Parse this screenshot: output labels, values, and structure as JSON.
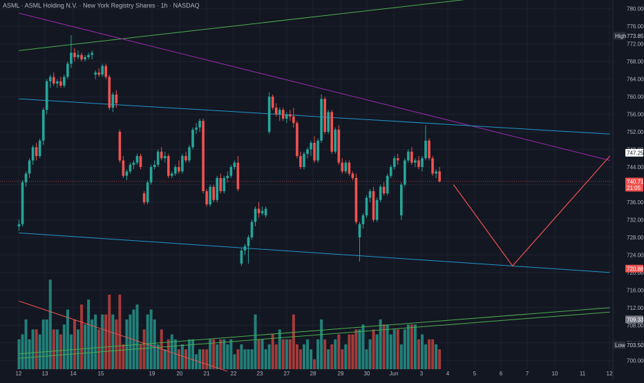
{
  "header": {
    "title": "ASML · ASML Holding N.V. · New York Registry Shares · 1h · NASDAQ"
  },
  "colors": {
    "background": "#131722",
    "up": "#26a69a",
    "down": "#ef5350",
    "volume_up": "#22807a",
    "volume_down": "#a33b3a",
    "trend_purple": "#9c27b0",
    "channel_cyan": "#2196c9",
    "green_line": "#4caf50",
    "projection_red": "#ef5350",
    "grid": "#1e2230",
    "text": "#b2b5be"
  },
  "chart_data": {
    "type": "candlestick",
    "y_axis_side": "right",
    "ylim": [
      698,
      782
    ],
    "y_ticks": [
      700,
      704,
      708,
      712,
      716,
      720,
      724,
      728,
      732,
      736,
      740,
      744,
      748,
      752,
      756,
      760,
      764,
      768,
      772,
      776,
      780
    ],
    "x_ticks": [
      "12",
      "13",
      "14",
      "15",
      "19",
      "20",
      "21",
      "22",
      "23",
      "27",
      "28",
      "29",
      "30",
      "Jun",
      "3",
      "4",
      "5",
      "6",
      "7",
      "10",
      "11",
      "12"
    ],
    "grid": true,
    "price_tags": [
      {
        "label": "High",
        "value": 773.85,
        "kind": "high"
      },
      {
        "label": "",
        "value": 747.25,
        "kind": "resistance"
      },
      {
        "label": "",
        "value": 740.71,
        "sub": "21:05",
        "kind": "last"
      },
      {
        "label": "",
        "value": 720.88,
        "kind": "support"
      },
      {
        "label": "",
        "value": 709.33,
        "kind": "green"
      },
      {
        "label": "Low",
        "value": 703.5,
        "kind": "low"
      }
    ],
    "candles": [
      [
        730.5,
        732.0,
        729.5,
        731.0
      ],
      [
        731.0,
        741.0,
        730.5,
        740.5
      ],
      [
        740.5,
        743.0,
        739.5,
        742.5
      ],
      [
        742.5,
        746.0,
        741.5,
        745.5
      ],
      [
        745.5,
        749.0,
        744.5,
        748.5
      ],
      [
        748.5,
        749.5,
        745.5,
        746.5
      ],
      [
        746.5,
        750.5,
        746.0,
        750.0
      ],
      [
        750.0,
        757.5,
        749.0,
        757.0
      ],
      [
        757.0,
        764.0,
        756.0,
        763.5
      ],
      [
        763.5,
        765.0,
        762.0,
        764.5
      ],
      [
        764.5,
        765.5,
        762.5,
        763.0
      ],
      [
        763.0,
        764.0,
        762.0,
        763.5
      ],
      [
        763.5,
        764.5,
        762.0,
        762.5
      ],
      [
        762.5,
        765.0,
        762.0,
        764.5
      ],
      [
        764.5,
        768.0,
        764.0,
        767.5
      ],
      [
        767.5,
        774.0,
        766.5,
        770.0
      ],
      [
        770.0,
        771.0,
        768.0,
        769.0
      ],
      [
        769.0,
        770.5,
        768.5,
        769.5
      ],
      [
        769.5,
        770.0,
        768.0,
        768.5
      ],
      [
        768.5,
        769.5,
        768.0,
        769.0
      ],
      [
        769.0,
        770.0,
        768.5,
        769.5
      ],
      [
        769.5,
        770.5,
        768.5,
        770.0
      ],
      [
        765.0,
        766.0,
        764.0,
        765.5
      ],
      [
        765.5,
        766.5,
        764.5,
        765.0
      ],
      [
        765.0,
        767.5,
        764.5,
        767.0
      ],
      [
        767.0,
        767.5,
        764.0,
        764.5
      ],
      [
        764.5,
        765.0,
        757.0,
        757.5
      ],
      [
        757.5,
        761.0,
        756.5,
        760.5
      ],
      [
        760.5,
        761.5,
        757.5,
        758.5
      ],
      [
        752.0,
        752.5,
        745.0,
        745.5
      ],
      [
        745.5,
        746.5,
        741.5,
        742.0
      ],
      [
        742.0,
        743.5,
        741.0,
        743.0
      ],
      [
        743.0,
        745.0,
        742.5,
        744.5
      ],
      [
        744.5,
        745.5,
        743.5,
        745.0
      ],
      [
        745.0,
        747.0,
        744.5,
        746.5
      ],
      [
        746.5,
        747.0,
        743.5,
        744.0
      ],
      [
        738.0,
        738.5,
        735.5,
        736.0
      ],
      [
        736.0,
        741.0,
        735.5,
        740.5
      ],
      [
        740.5,
        744.5,
        740.0,
        744.0
      ],
      [
        744.0,
        745.5,
        743.5,
        744.5
      ],
      [
        744.5,
        748.0,
        744.0,
        747.5
      ],
      [
        747.5,
        748.5,
        745.5,
        746.0
      ],
      [
        746.0,
        747.5,
        745.0,
        746.5
      ],
      [
        746.5,
        747.0,
        741.5,
        742.0
      ],
      [
        742.0,
        743.0,
        741.5,
        742.5
      ],
      [
        742.5,
        744.5,
        742.0,
        744.0
      ],
      [
        744.0,
        745.5,
        742.5,
        743.0
      ],
      [
        743.0,
        747.0,
        742.5,
        746.5
      ],
      [
        746.5,
        747.5,
        745.0,
        745.5
      ],
      [
        745.5,
        749.0,
        745.0,
        748.5
      ],
      [
        748.5,
        753.0,
        748.0,
        752.5
      ],
      [
        752.5,
        754.0,
        751.5,
        753.0
      ],
      [
        753.0,
        755.0,
        752.0,
        754.5
      ],
      [
        754.5,
        755.0,
        738.0,
        738.5
      ],
      [
        738.5,
        739.0,
        735.0,
        735.5
      ],
      [
        735.5,
        740.0,
        735.0,
        739.5
      ],
      [
        739.5,
        740.0,
        736.0,
        736.5
      ],
      [
        736.5,
        742.0,
        736.0,
        741.5
      ],
      [
        741.5,
        742.5,
        738.0,
        738.5
      ],
      [
        738.5,
        742.0,
        738.0,
        741.5
      ],
      [
        741.5,
        743.0,
        740.5,
        742.0
      ],
      [
        742.0,
        744.5,
        741.5,
        744.0
      ],
      [
        744.0,
        745.5,
        743.5,
        745.0
      ],
      [
        745.0,
        746.5,
        738.5,
        739.0
      ],
      [
        722.0,
        725.5,
        721.5,
        725.0
      ],
      [
        725.0,
        726.5,
        724.0,
        726.0
      ],
      [
        726.0,
        728.5,
        722.0,
        728.0
      ],
      [
        728.0,
        732.0,
        727.5,
        731.5
      ],
      [
        731.5,
        735.0,
        730.5,
        734.5
      ],
      [
        734.5,
        736.0,
        732.5,
        733.5
      ],
      [
        733.5,
        735.0,
        733.0,
        734.0
      ],
      [
        733.0,
        735.0,
        732.5,
        734.5
      ],
      [
        752.0,
        761.0,
        751.5,
        760.0
      ],
      [
        760.0,
        760.5,
        757.0,
        757.5
      ],
      [
        757.5,
        758.5,
        755.5,
        756.0
      ],
      [
        756.0,
        757.5,
        754.5,
        757.0
      ],
      [
        757.0,
        757.5,
        754.5,
        755.0
      ],
      [
        755.0,
        756.5,
        754.0,
        756.0
      ],
      [
        756.0,
        757.0,
        754.5,
        755.5
      ],
      [
        755.5,
        757.5,
        753.0,
        754.0
      ],
      [
        754.0,
        754.5,
        746.0,
        746.5
      ],
      [
        746.5,
        747.5,
        743.5,
        744.0
      ],
      [
        744.0,
        747.5,
        743.5,
        747.0
      ],
      [
        747.0,
        748.5,
        746.0,
        748.0
      ],
      [
        748.0,
        750.0,
        746.5,
        749.5
      ],
      [
        749.5,
        751.0,
        745.0,
        745.5
      ],
      [
        745.5,
        750.5,
        745.0,
        750.0
      ],
      [
        750.0,
        760.5,
        749.5,
        759.5
      ],
      [
        759.5,
        760.0,
        751.5,
        752.0
      ],
      [
        752.0,
        757.0,
        751.5,
        756.5
      ],
      [
        756.5,
        757.0,
        747.0,
        747.5
      ],
      [
        747.5,
        753.0,
        747.0,
        752.5
      ],
      [
        752.5,
        753.5,
        744.5,
        745.0
      ],
      [
        745.0,
        746.0,
        742.5,
        743.0
      ],
      [
        743.0,
        745.5,
        742.5,
        745.0
      ],
      [
        745.0,
        745.5,
        742.0,
        742.5
      ],
      [
        742.5,
        743.0,
        741.0,
        741.5
      ],
      [
        741.5,
        742.5,
        731.0,
        731.5
      ],
      [
        728.0,
        731.5,
        722.5,
        731.0
      ],
      [
        731.0,
        733.5,
        730.0,
        733.0
      ],
      [
        733.0,
        737.5,
        732.5,
        737.0
      ],
      [
        737.0,
        739.0,
        736.0,
        738.5
      ],
      [
        738.5,
        739.5,
        731.5,
        732.0
      ],
      [
        732.0,
        737.0,
        731.5,
        736.5
      ],
      [
        736.5,
        740.0,
        736.0,
        739.5
      ],
      [
        739.5,
        740.5,
        737.5,
        738.0
      ],
      [
        738.0,
        742.5,
        737.5,
        742.0
      ],
      [
        742.0,
        744.5,
        741.5,
        744.0
      ],
      [
        744.0,
        746.5,
        743.5,
        746.0
      ],
      [
        746.0,
        747.0,
        744.5,
        745.5
      ],
      [
        733.0,
        740.5,
        732.0,
        740.0
      ],
      [
        740.0,
        746.0,
        739.5,
        745.5
      ],
      [
        745.5,
        748.0,
        745.0,
        747.5
      ],
      [
        747.5,
        748.5,
        744.5,
        745.0
      ],
      [
        745.0,
        746.0,
        744.0,
        745.5
      ],
      [
        745.5,
        746.5,
        743.5,
        744.0
      ],
      [
        744.0,
        746.5,
        743.0,
        746.0
      ],
      [
        746.0,
        753.5,
        745.5,
        750.0
      ],
      [
        750.0,
        750.5,
        745.5,
        746.0
      ],
      [
        746.0,
        746.5,
        742.0,
        742.5
      ],
      [
        742.5,
        743.5,
        741.5,
        743.0
      ],
      [
        743.0,
        744.0,
        740.5,
        740.7
      ]
    ],
    "volumes": [
      6,
      7,
      10,
      6,
      8,
      8,
      7,
      10,
      10,
      18,
      8,
      8,
      7,
      9,
      12,
      7,
      10,
      8,
      13,
      9,
      14,
      10,
      11,
      8,
      11,
      11,
      15,
      11,
      10,
      15,
      5,
      10,
      11,
      12,
      13,
      5,
      8,
      11,
      12,
      10,
      5,
      8,
      4,
      6,
      7,
      6,
      4,
      5,
      4,
      6,
      6,
      3,
      4,
      4,
      4,
      6,
      6,
      5,
      6,
      6,
      5,
      6,
      3,
      4,
      5,
      4,
      4,
      4,
      11,
      6,
      6,
      4,
      5,
      7,
      5,
      8,
      6,
      6,
      6,
      11,
      5,
      4,
      5,
      6,
      4,
      2,
      6,
      10,
      6,
      4,
      5,
      6,
      7,
      4,
      5,
      7,
      7,
      8,
      8,
      9,
      4,
      6,
      8,
      7,
      10,
      9,
      9,
      7,
      8,
      8,
      5,
      8,
      9,
      9,
      9,
      6,
      7,
      5,
      6,
      6,
      5,
      4,
      5,
      4
    ],
    "volume_ylim": [
      0,
      19
    ],
    "volume_pane": {
      "from_price": 698,
      "to_price": 719.5
    },
    "lines": [
      {
        "id": "upper-green",
        "color": "#4caf50",
        "points": [
          [
            0,
            770.5
          ],
          [
            155,
            784.5
          ]
        ]
      },
      {
        "id": "purple-downtrend",
        "color": "#9c27b0",
        "points": [
          [
            0,
            779.0
          ],
          [
            170,
            745.5
          ]
        ]
      },
      {
        "id": "upper-cyan-channel",
        "color": "#2196c9",
        "points": [
          [
            0,
            759.5
          ],
          [
            170,
            751.5
          ]
        ]
      },
      {
        "id": "lower-cyan-channel",
        "color": "#2196c9",
        "points": [
          [
            0,
            729.0
          ],
          [
            170,
            720.0
          ]
        ]
      },
      {
        "id": "lower-green-a",
        "color": "#4caf50",
        "points": [
          [
            0,
            701.5
          ],
          [
            170,
            712.0
          ]
        ]
      },
      {
        "id": "lower-green-b",
        "color": "#4caf50",
        "points": [
          [
            0,
            700.5
          ],
          [
            170,
            711.0
          ]
        ]
      },
      {
        "id": "red-diagonal",
        "color": "#ef5350",
        "points": [
          [
            0,
            713.5
          ],
          [
            60,
            697.5
          ]
        ]
      }
    ],
    "projection": {
      "color": "#ef5350",
      "points": [
        [
          125,
          740.0
        ],
        [
          142,
          721.5
        ],
        [
          170,
          746.5
        ]
      ]
    },
    "horizontal_lines": [
      {
        "value": 740.71,
        "color": "#ef5350"
      }
    ]
  }
}
